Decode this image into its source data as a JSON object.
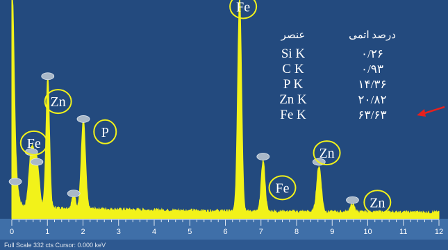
{
  "chart_data": {
    "type": "line",
    "xlabel": "",
    "ylabel": "",
    "xlim": [
      0,
      12
    ],
    "ylim": [
      0,
      332
    ],
    "x_ticks": [
      "0",
      "1",
      "2",
      "3",
      "4",
      "5",
      "6",
      "7",
      "8",
      "9",
      "10",
      "11",
      "12"
    ],
    "footer": "Full Scale 332 cts  Cursor: 0.000 keV",
    "colors": {
      "background": "#234a7e",
      "spectrum": "#f2f21a",
      "circle": "#f2f21a",
      "arrow": "#e8201c"
    },
    "spectrum": {
      "baseline": 10,
      "peaks": [
        {
          "x": 0.0,
          "y": 332,
          "w": 0.06
        },
        {
          "x": 0.1,
          "y": 40,
          "w": 0.08
        },
        {
          "x": 0.55,
          "y": 85,
          "w": 0.07
        },
        {
          "x": 0.7,
          "y": 70,
          "w": 0.07
        },
        {
          "x": 1.01,
          "y": 200,
          "w": 0.05
        },
        {
          "x": 1.74,
          "y": 22,
          "w": 0.05
        },
        {
          "x": 2.01,
          "y": 135,
          "w": 0.06
        },
        {
          "x": 6.4,
          "y": 332,
          "w": 0.055
        },
        {
          "x": 7.06,
          "y": 78,
          "w": 0.055
        },
        {
          "x": 8.63,
          "y": 70,
          "w": 0.065
        },
        {
          "x": 9.57,
          "y": 12,
          "w": 0.06
        }
      ]
    },
    "peak_labels": [
      {
        "text": "Fe",
        "x": 0.62,
        "y": 115
      },
      {
        "text": "Zn",
        "x": 1.3,
        "y": 178
      },
      {
        "text": "P",
        "x": 2.62,
        "y": 132
      },
      {
        "text": "Fe",
        "x": 6.5,
        "y": 322
      },
      {
        "text": "Fe",
        "x": 7.6,
        "y": 47
      },
      {
        "text": "Zn",
        "x": 8.85,
        "y": 100
      },
      {
        "text": "Zn",
        "x": 10.27,
        "y": 25
      }
    ],
    "table": {
      "element_header": "عنصر",
      "value_header": "درصد اتمی",
      "rows": [
        {
          "element": "Si K",
          "value": "۰/۲۶"
        },
        {
          "element": "C K",
          "value": "۰/۹۳"
        },
        {
          "element": "P K",
          "value": "۱۴/۳۶"
        },
        {
          "element": "Zn K",
          "value": "۲۰/۸۲"
        },
        {
          "element": "Fe K",
          "value": "۶۳/۶۳"
        }
      ]
    }
  }
}
